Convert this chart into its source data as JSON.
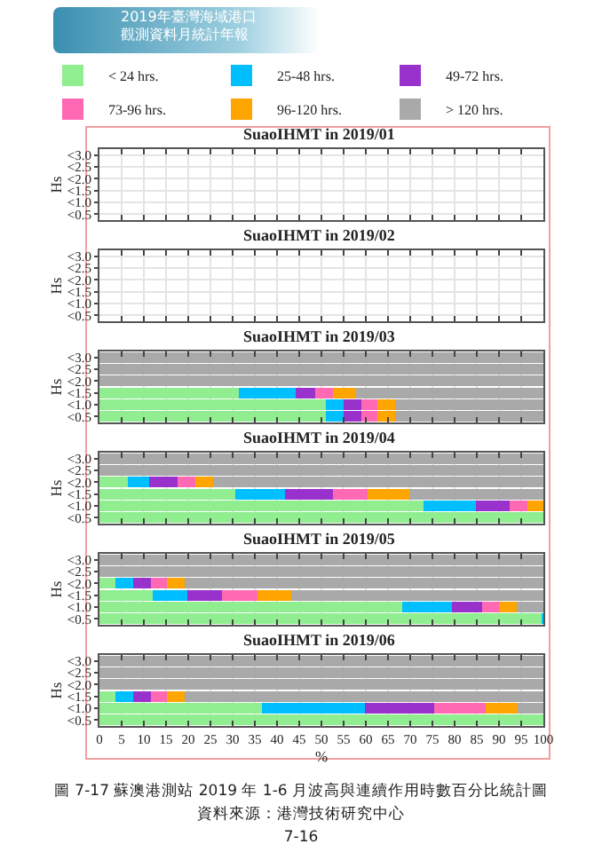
{
  "chart_data": [
    {
      "type": "bar",
      "orientation": "horizontal",
      "stacked": true,
      "title": "SuaoIHMT in 2019/01",
      "ylabel": "Hs",
      "legend": "top",
      "grid": true,
      "tick_labels": "y",
      "annotations": [
        "2019年臺灣海域港口",
        "觀測資料月統計年報"
      ],
      "categories": [
        "<3.0",
        "<2.5",
        "<2.0",
        "<1.5",
        "<1.0",
        "<0.5"
      ],
      "xlim": [
        0,
        100
      ],
      "xticks": [
        0,
        5,
        10,
        15,
        20,
        25,
        30,
        35,
        40,
        45,
        50,
        55,
        60,
        65,
        70,
        75,
        80,
        85,
        90,
        95,
        100
      ],
      "series": [
        {
          "name": "< 24 hrs.",
          "color": "#90ee90",
          "values": [
            null,
            null,
            null,
            null,
            null,
            null
          ]
        },
        {
          "name": "25-48 hrs.",
          "color": "#00bfff",
          "values": [
            null,
            null,
            null,
            null,
            null,
            null
          ]
        },
        {
          "name": "49-72 hrs.",
          "color": "#9932cc",
          "values": [
            null,
            null,
            null,
            null,
            null,
            null
          ]
        },
        {
          "name": "73-96 hrs.",
          "color": "#ff69b4",
          "values": [
            null,
            null,
            null,
            null,
            null,
            null
          ]
        },
        {
          "name": "96-120 hrs.",
          "color": "#ffa500",
          "values": [
            null,
            null,
            null,
            null,
            null,
            null
          ]
        },
        {
          "name": "> 120 hrs.",
          "color": "#a9a9a9",
          "values": [
            null,
            null,
            null,
            null,
            null,
            null
          ]
        }
      ]
    },
    {
      "type": "bar",
      "orientation": "horizontal",
      "stacked": true,
      "title": "SuaoIHMT in 2019/02",
      "ylabel": "Hs",
      "grid": true,
      "tick_labels": "y",
      "categories": [
        "<3.0",
        "<2.5",
        "<2.0",
        "<1.5",
        "<1.0",
        "<0.5"
      ],
      "xlim": [
        0,
        100
      ],
      "xticks": [
        0,
        5,
        10,
        15,
        20,
        25,
        30,
        35,
        40,
        45,
        50,
        55,
        60,
        65,
        70,
        75,
        80,
        85,
        90,
        95,
        100
      ],
      "series": [
        {
          "color": "#90ee90",
          "values": [
            null,
            null,
            null,
            null,
            null,
            null
          ]
        },
        {
          "color": "#00bfff",
          "values": [
            null,
            null,
            null,
            null,
            null,
            null
          ]
        },
        {
          "color": "#9932cc",
          "values": [
            null,
            null,
            null,
            null,
            null,
            null
          ]
        },
        {
          "color": "#ff69b4",
          "values": [
            null,
            null,
            null,
            null,
            null,
            null
          ]
        },
        {
          "color": "#ffa500",
          "values": [
            null,
            null,
            null,
            null,
            null,
            null
          ]
        },
        {
          "color": "#a9a9a9",
          "values": [
            null,
            null,
            null,
            null,
            null,
            null
          ]
        }
      ]
    },
    {
      "type": "bar",
      "orientation": "horizontal",
      "stacked": true,
      "title": "SuaoIHMT in 2019/03",
      "ylabel": "Hs",
      "grid": true,
      "tick_labels": "y",
      "categories": [
        "<3.0",
        "<2.5",
        "<2.0",
        "<1.5",
        "<1.0",
        "<0.5"
      ],
      "xlim": [
        0,
        100
      ],
      "xticks": [
        0,
        5,
        10,
        15,
        20,
        25,
        30,
        35,
        40,
        45,
        50,
        55,
        60,
        65,
        70,
        75,
        80,
        85,
        90,
        95,
        100
      ],
      "series": [
        {
          "color": "#90ee90",
          "values": [
            0,
            0,
            0,
            31.4,
            50.9,
            50.9
          ]
        },
        {
          "color": "#00bfff",
          "values": [
            0,
            0,
            0,
            12.8,
            4,
            4
          ]
        },
        {
          "color": "#9932cc",
          "values": [
            0,
            0,
            0,
            4.3,
            4,
            4
          ]
        },
        {
          "color": "#ff69b4",
          "values": [
            0,
            0,
            0,
            4,
            3.7,
            3.7
          ]
        },
        {
          "color": "#ffa500",
          "values": [
            0,
            0,
            0,
            5.3,
            4,
            4
          ]
        },
        {
          "color": "#a9a9a9",
          "values": [
            100,
            100,
            100,
            42.2,
            33.4,
            33.4
          ]
        }
      ]
    },
    {
      "type": "bar",
      "orientation": "horizontal",
      "stacked": true,
      "title": "SuaoIHMT in 2019/04",
      "ylabel": "Hs",
      "grid": true,
      "tick_labels": "y",
      "categories": [
        "<3.0",
        "<2.5",
        "<2.0",
        "<1.5",
        "<1.0",
        "<0.5"
      ],
      "xlim": [
        0,
        100
      ],
      "xticks": [
        0,
        5,
        10,
        15,
        20,
        25,
        30,
        35,
        40,
        45,
        50,
        55,
        60,
        65,
        70,
        75,
        80,
        85,
        90,
        95,
        100
      ],
      "series": [
        {
          "color": "#90ee90",
          "values": [
            0,
            0,
            6.4,
            30.6,
            73,
            100
          ]
        },
        {
          "color": "#00bfff",
          "values": [
            0,
            0,
            4.8,
            11.2,
            11.8,
            0
          ]
        },
        {
          "color": "#9932cc",
          "values": [
            0,
            0,
            6.4,
            10.8,
            7.5,
            0
          ]
        },
        {
          "color": "#ff69b4",
          "values": [
            0,
            0,
            4,
            7.8,
            4,
            0
          ]
        },
        {
          "color": "#ffa500",
          "values": [
            0,
            0,
            4,
            9.4,
            3.7,
            0
          ]
        },
        {
          "color": "#a9a9a9",
          "values": [
            100,
            100,
            74.4,
            30.2,
            0,
            0
          ]
        }
      ]
    },
    {
      "type": "bar",
      "orientation": "horizontal",
      "stacked": true,
      "title": "SuaoIHMT in 2019/05",
      "ylabel": "Hs",
      "grid": true,
      "tick_labels": "y",
      "categories": [
        "<3.0",
        "<2.5",
        "<2.0",
        "<1.5",
        "<1.0",
        "<0.5"
      ],
      "xlim": [
        0,
        100
      ],
      "xticks": [
        0,
        5,
        10,
        15,
        20,
        25,
        30,
        35,
        40,
        45,
        50,
        55,
        60,
        65,
        70,
        75,
        80,
        85,
        90,
        95,
        100
      ],
      "series": [
        {
          "color": "#90ee90",
          "values": [
            0,
            0,
            3.5,
            12,
            68.1,
            99.5
          ]
        },
        {
          "color": "#00bfff",
          "values": [
            0,
            0,
            4,
            7.8,
            11.2,
            0.5
          ]
        },
        {
          "color": "#9932cc",
          "values": [
            0,
            0,
            4,
            7.7,
            6.9,
            0
          ]
        },
        {
          "color": "#ff69b4",
          "values": [
            0,
            0,
            3.7,
            8,
            3.8,
            0
          ]
        },
        {
          "color": "#ffa500",
          "values": [
            0,
            0,
            4,
            7.7,
            4,
            0
          ]
        },
        {
          "color": "#a9a9a9",
          "values": [
            100,
            100,
            80.8,
            56.8,
            6,
            0
          ]
        }
      ]
    },
    {
      "type": "bar",
      "orientation": "horizontal",
      "stacked": true,
      "title": "SuaoIHMT in 2019/06",
      "ylabel": "Hs",
      "xlabel": "%",
      "grid": true,
      "annotations": [
        "圖 7-17 蘇澳港測站 2019 年 1-6 月波高與連續作用時數百分比統計圖",
        "資料來源：港灣技術研究中心",
        "7-16"
      ],
      "categories": [
        "<3.0",
        "<2.5",
        "<2.0",
        "<1.5",
        "<1.0",
        "<0.5"
      ],
      "xlim": [
        0,
        100
      ],
      "xticks": [
        0,
        5,
        10,
        15,
        20,
        25,
        30,
        35,
        40,
        45,
        50,
        55,
        60,
        65,
        70,
        75,
        80,
        85,
        90,
        95,
        100
      ],
      "series": [
        {
          "color": "#90ee90",
          "values": [
            0,
            0,
            0,
            3.5,
            36.5,
            100
          ]
        },
        {
          "color": "#00bfff",
          "values": [
            0,
            0,
            0,
            4,
            23.3,
            0
          ]
        },
        {
          "color": "#9932cc",
          "values": [
            0,
            0,
            0,
            4,
            15.5,
            0
          ]
        },
        {
          "color": "#ff69b4",
          "values": [
            0,
            0,
            0,
            3.7,
            11.6,
            0
          ]
        },
        {
          "color": "#ffa500",
          "values": [
            0,
            0,
            0,
            4,
            7.2,
            0
          ]
        },
        {
          "color": "#a9a9a9",
          "values": [
            100,
            100,
            100,
            80.8,
            5.9,
            0
          ]
        }
      ]
    }
  ]
}
